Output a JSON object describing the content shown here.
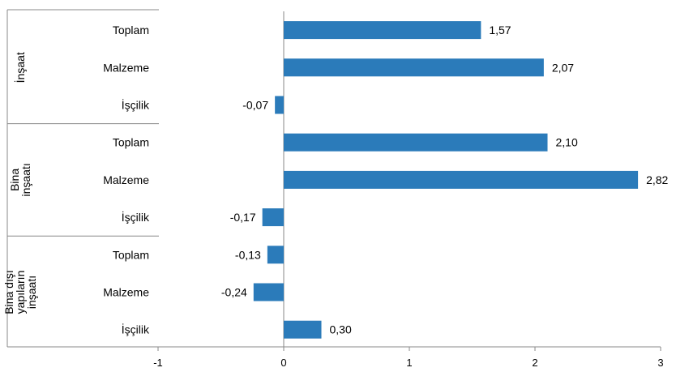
{
  "chart_data": {
    "type": "bar",
    "orientation": "horizontal",
    "title": "",
    "xlabel": "",
    "ylabel": "",
    "xlim": [
      -1,
      3
    ],
    "xticks": [
      "-1",
      "0",
      "1",
      "2",
      "3"
    ],
    "grid": false,
    "legend": "none",
    "bar_color": "#2b7bba",
    "groups": [
      {
        "label": [
          "İnşaat"
        ],
        "items": [
          {
            "category": "Toplam",
            "value": 1.57,
            "label": "1,57"
          },
          {
            "category": "Malzeme",
            "value": 2.07,
            "label": "2,07"
          },
          {
            "category": "İşçilik",
            "value": -0.07,
            "label": "-0,07"
          }
        ]
      },
      {
        "label": [
          "Bina",
          "inşaatı"
        ],
        "items": [
          {
            "category": "Toplam",
            "value": 2.1,
            "label": "2,10"
          },
          {
            "category": "Malzeme",
            "value": 2.82,
            "label": "2,82"
          },
          {
            "category": "İşçilik",
            "value": -0.17,
            "label": "-0,17"
          }
        ]
      },
      {
        "label": [
          "Bina dışı",
          "yapıların",
          "inşaatı"
        ],
        "items": [
          {
            "category": "Toplam",
            "value": -0.13,
            "label": "-0,13"
          },
          {
            "category": "Malzeme",
            "value": -0.24,
            "label": "-0,24"
          },
          {
            "category": "İşçilik",
            "value": 0.3,
            "label": "0,30"
          }
        ]
      }
    ]
  }
}
